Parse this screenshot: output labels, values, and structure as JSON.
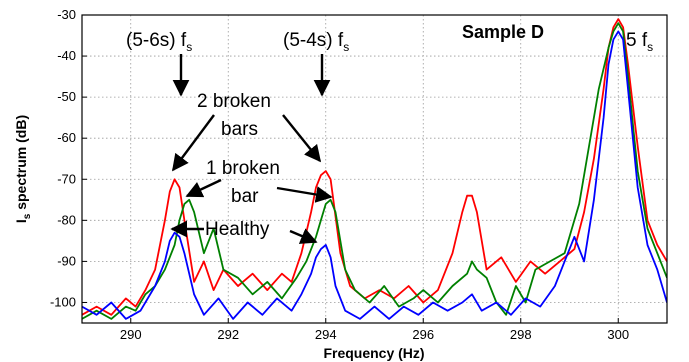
{
  "chart_data": {
    "type": "line",
    "title": "",
    "sample_label": "Sample D",
    "xlabel": "Frequency (Hz)",
    "ylabel_main": "I",
    "ylabel_sub": "s",
    "ylabel_rest": " spectrum (dB)",
    "xlim": [
      289,
      301
    ],
    "ylim": [
      -105,
      -30
    ],
    "xticks": [
      290,
      292,
      294,
      296,
      298,
      300
    ],
    "yticks": [
      -30,
      -40,
      -50,
      -60,
      -70,
      -80,
      -90,
      -100
    ],
    "grid": true,
    "legend": "none",
    "colors": {
      "red": "#ff0000",
      "green": "#008000",
      "blue": "#0000ff"
    },
    "series": [
      {
        "color": "red",
        "x": [
          289.0,
          289.3,
          289.6,
          289.9,
          290.1,
          290.3,
          290.5,
          290.7,
          290.8,
          290.9,
          291.0,
          291.1,
          291.3,
          291.5,
          291.7,
          291.9,
          292.2,
          292.5,
          292.8,
          293.1,
          293.3,
          293.5,
          293.7,
          293.8,
          293.9,
          294.0,
          294.1,
          294.3,
          294.5,
          294.8,
          295.1,
          295.4,
          295.7,
          296.0,
          296.3,
          296.6,
          296.8,
          296.9,
          297.0,
          297.1,
          297.3,
          297.6,
          297.9,
          298.2,
          298.5,
          298.8,
          299.1,
          299.3,
          299.5,
          299.7,
          299.8,
          299.9,
          300.0,
          300.1,
          300.2,
          300.4,
          300.6,
          300.8,
          301.0
        ],
        "y": [
          -103,
          -101,
          -103,
          -99,
          -101,
          -97,
          -92,
          -80,
          -73,
          -70,
          -72,
          -80,
          -95,
          -90,
          -97,
          -92,
          -96,
          -93,
          -97,
          -93,
          -95,
          -88,
          -78,
          -72,
          -69,
          -68,
          -70,
          -88,
          -96,
          -99,
          -97,
          -99,
          -96,
          -100,
          -97,
          -88,
          -78,
          -74,
          -74,
          -78,
          -92,
          -89,
          -95,
          -90,
          -93,
          -90,
          -87,
          -78,
          -65,
          -48,
          -38,
          -33,
          -31,
          -33,
          -42,
          -62,
          -80,
          -86,
          -90
        ]
      },
      {
        "color": "green",
        "x": [
          289.0,
          289.3,
          289.6,
          289.9,
          290.1,
          290.3,
          290.5,
          290.7,
          290.9,
          291.0,
          291.1,
          291.2,
          291.3,
          291.5,
          291.7,
          291.9,
          292.2,
          292.5,
          292.8,
          293.1,
          293.4,
          293.6,
          293.8,
          293.9,
          294.0,
          294.1,
          294.2,
          294.4,
          294.6,
          294.9,
          295.2,
          295.5,
          295.8,
          296.0,
          296.3,
          296.6,
          296.9,
          297.0,
          297.1,
          297.3,
          297.5,
          297.7,
          297.9,
          298.1,
          298.3,
          298.6,
          298.9,
          299.2,
          299.4,
          299.6,
          299.8,
          299.9,
          300.0,
          300.1,
          300.2,
          300.4,
          300.6,
          300.8,
          301.0
        ],
        "y": [
          -104,
          -102,
          -104,
          -101,
          -102,
          -98,
          -96,
          -92,
          -86,
          -80,
          -76,
          -75,
          -78,
          -88,
          -82,
          -92,
          -94,
          -98,
          -95,
          -99,
          -94,
          -90,
          -84,
          -80,
          -76,
          -75,
          -78,
          -92,
          -97,
          -100,
          -96,
          -101,
          -99,
          -97,
          -100,
          -96,
          -93,
          -90,
          -92,
          -94,
          -100,
          -103,
          -96,
          -100,
          -92,
          -90,
          -88,
          -76,
          -62,
          -48,
          -38,
          -34,
          -32,
          -34,
          -45,
          -68,
          -82,
          -88,
          -94
        ]
      },
      {
        "color": "blue",
        "x": [
          289.0,
          289.3,
          289.6,
          289.9,
          290.2,
          290.5,
          290.7,
          290.8,
          290.9,
          291.0,
          291.1,
          291.3,
          291.5,
          291.8,
          292.1,
          292.4,
          292.7,
          293.0,
          293.3,
          293.5,
          293.7,
          293.8,
          293.9,
          294.0,
          294.1,
          294.2,
          294.4,
          294.7,
          295.0,
          295.3,
          295.6,
          295.9,
          296.2,
          296.5,
          296.8,
          297.0,
          297.2,
          297.5,
          297.8,
          298.1,
          298.4,
          298.7,
          298.9,
          299.1,
          299.3,
          299.5,
          299.7,
          299.8,
          299.9,
          300.0,
          300.1,
          300.2,
          300.4,
          300.6,
          300.8,
          301.0
        ],
        "y": [
          -101,
          -103,
          -100,
          -104,
          -102,
          -96,
          -90,
          -85,
          -83,
          -84,
          -88,
          -98,
          -103,
          -99,
          -104,
          -100,
          -103,
          -99,
          -102,
          -98,
          -93,
          -89,
          -87,
          -86,
          -89,
          -96,
          -102,
          -104,
          -101,
          -104,
          -101,
          -103,
          -100,
          -102,
          -100,
          -98,
          -102,
          -100,
          -103,
          -99,
          -101,
          -96,
          -90,
          -84,
          -90,
          -75,
          -55,
          -42,
          -36,
          -34,
          -36,
          -48,
          -72,
          -86,
          -92,
          -100
        ]
      }
    ],
    "annotations": [
      {
        "id": "label-5-6s",
        "base": "(5-6s) f",
        "sub": "s"
      },
      {
        "id": "label-5-4s",
        "base": "(5-4s) f",
        "sub": "s"
      },
      {
        "id": "label-5fs",
        "base": "5 f",
        "sub": "s"
      },
      {
        "id": "label-2-broken-line1",
        "text": "2 broken"
      },
      {
        "id": "label-2-broken-line2",
        "text": "bars"
      },
      {
        "id": "label-1-broken-line1",
        "text": "1 broken"
      },
      {
        "id": "label-1-broken-line2",
        "text": "bar"
      },
      {
        "id": "label-healthy",
        "text": "Healthy"
      }
    ]
  }
}
